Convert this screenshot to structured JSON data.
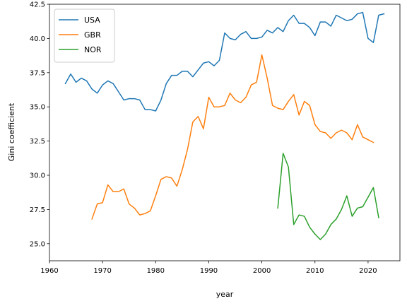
{
  "chart_data": {
    "type": "line",
    "title": "",
    "xlabel": "year",
    "ylabel": "Gini coefficient",
    "xlim": [
      1960,
      2026
    ],
    "ylim": [
      23.75,
      42.5
    ],
    "xticks": [
      1960,
      1970,
      1980,
      1990,
      2000,
      2010,
      2020
    ],
    "yticks": [
      25.0,
      27.5,
      30.0,
      32.5,
      35.0,
      37.5,
      40.0,
      42.5
    ],
    "xtick_labels": [
      "1960",
      "1970",
      "1980",
      "1990",
      "2000",
      "2010",
      "2020"
    ],
    "ytick_labels": [
      "25.0",
      "27.5",
      "30.0",
      "32.5",
      "35.0",
      "37.5",
      "40.0",
      "42.5"
    ],
    "grid": false,
    "legend_position": "upper-left",
    "series": [
      {
        "name": "USA",
        "color": "#1f77b4",
        "x": [
          1963,
          1964,
          1965,
          1966,
          1967,
          1968,
          1969,
          1970,
          1971,
          1972,
          1973,
          1974,
          1975,
          1976,
          1977,
          1978,
          1979,
          1980,
          1981,
          1982,
          1983,
          1984,
          1985,
          1986,
          1987,
          1988,
          1989,
          1990,
          1991,
          1992,
          1993,
          1994,
          1995,
          1996,
          1997,
          1998,
          1999,
          2000,
          2001,
          2002,
          2003,
          2004,
          2005,
          2006,
          2007,
          2008,
          2009,
          2010,
          2011,
          2012,
          2013,
          2014,
          2015,
          2016,
          2017,
          2018,
          2019,
          2020,
          2021,
          2022,
          2023
        ],
        "y": [
          36.7,
          37.4,
          36.8,
          37.1,
          36.9,
          36.3,
          36.0,
          36.6,
          36.9,
          36.7,
          36.1,
          35.5,
          35.6,
          35.6,
          35.5,
          34.8,
          34.8,
          34.7,
          35.5,
          36.7,
          37.3,
          37.3,
          37.6,
          37.6,
          37.2,
          37.7,
          38.2,
          38.3,
          38.0,
          38.4,
          40.4,
          40.0,
          39.9,
          40.3,
          40.5,
          40.0,
          40.0,
          40.1,
          40.6,
          40.4,
          40.8,
          40.5,
          41.3,
          41.7,
          41.1,
          41.1,
          40.8,
          40.2,
          41.2,
          41.2,
          40.9,
          41.7,
          41.5,
          41.3,
          41.4,
          41.8,
          41.9,
          40.0,
          39.7,
          41.7,
          41.8
        ]
      },
      {
        "name": "GBR",
        "color": "#ff7f0e",
        "x": [
          1968,
          1969,
          1970,
          1971,
          1972,
          1973,
          1974,
          1975,
          1976,
          1977,
          1978,
          1979,
          1980,
          1981,
          1982,
          1983,
          1984,
          1985,
          1986,
          1987,
          1988,
          1989,
          1990,
          1991,
          1992,
          1993,
          1994,
          1995,
          1996,
          1997,
          1998,
          1999,
          2000,
          2001,
          2002,
          2003,
          2004,
          2005,
          2006,
          2007,
          2008,
          2009,
          2010,
          2011,
          2012,
          2013,
          2014,
          2015,
          2016,
          2017,
          2018,
          2019,
          2020,
          2021
        ],
        "y": [
          26.8,
          27.9,
          28.0,
          29.3,
          28.8,
          28.8,
          29.0,
          27.9,
          27.6,
          27.1,
          27.2,
          27.4,
          28.5,
          29.7,
          29.9,
          29.8,
          29.2,
          30.4,
          31.9,
          33.9,
          34.3,
          33.4,
          35.7,
          35.0,
          35.0,
          35.1,
          36.0,
          35.5,
          35.3,
          35.7,
          36.6,
          36.8,
          38.8,
          37.1,
          35.1,
          34.9,
          34.8,
          35.4,
          35.9,
          34.4,
          35.4,
          35.1,
          33.7,
          33.2,
          33.1,
          32.7,
          33.1,
          33.3,
          33.1,
          32.6,
          33.7,
          32.8,
          32.6,
          32.4
        ]
      },
      {
        "name": "NOR",
        "color": "#2ca02c",
        "x": [
          2003,
          2004,
          2005,
          2006,
          2007,
          2008,
          2009,
          2010,
          2011,
          2012,
          2013,
          2014,
          2015,
          2016,
          2017,
          2018,
          2019,
          2020,
          2021,
          2022
        ],
        "y": [
          27.6,
          31.6,
          30.6,
          26.4,
          27.1,
          27.0,
          26.2,
          25.7,
          25.3,
          25.7,
          26.4,
          26.8,
          27.5,
          28.5,
          27.0,
          27.6,
          27.7,
          28.4,
          29.1,
          26.9
        ]
      }
    ]
  }
}
